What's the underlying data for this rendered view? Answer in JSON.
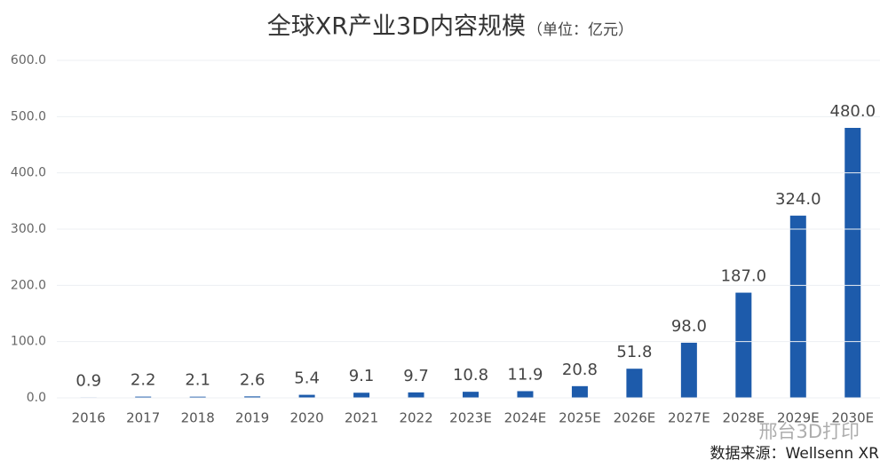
{
  "chart_data": {
    "type": "bar",
    "title": "全球XR产业3D内容规模",
    "subtitle": "（单位：亿元）",
    "source": "数据来源：Wellsenn XR",
    "watermark": "邢台3D打印",
    "categories": [
      "2016",
      "2017",
      "2018",
      "2019",
      "2020",
      "2021",
      "2022",
      "2023E",
      "2024E",
      "2025E",
      "2026E",
      "2027E",
      "2028E",
      "2029E",
      "2030E"
    ],
    "values": [
      0.9,
      2.2,
      2.1,
      2.6,
      5.4,
      9.1,
      9.7,
      10.8,
      11.9,
      20.8,
      51.8,
      98,
      187,
      324,
      480
    ],
    "value_labels": [
      "0.9",
      "2.2",
      "2.1",
      "2.6",
      "5.4",
      "9.1",
      "9.7",
      "10.8",
      "11.9",
      "20.8",
      "51.8",
      "98.0",
      "187.0",
      "324.0",
      "480.0"
    ],
    "color": "#1d5bab",
    "ylim": [
      0,
      600
    ],
    "yticks": [
      {
        "value": 0,
        "label": "0.0"
      },
      {
        "value": 100,
        "label": "100.0"
      },
      {
        "value": 200,
        "label": "200.0"
      },
      {
        "value": 300,
        "label": "300.0"
      },
      {
        "value": 400,
        "label": "400.0"
      },
      {
        "value": 500,
        "label": "500.0"
      },
      {
        "value": 600,
        "label": "600.0"
      }
    ],
    "grid": true
  }
}
